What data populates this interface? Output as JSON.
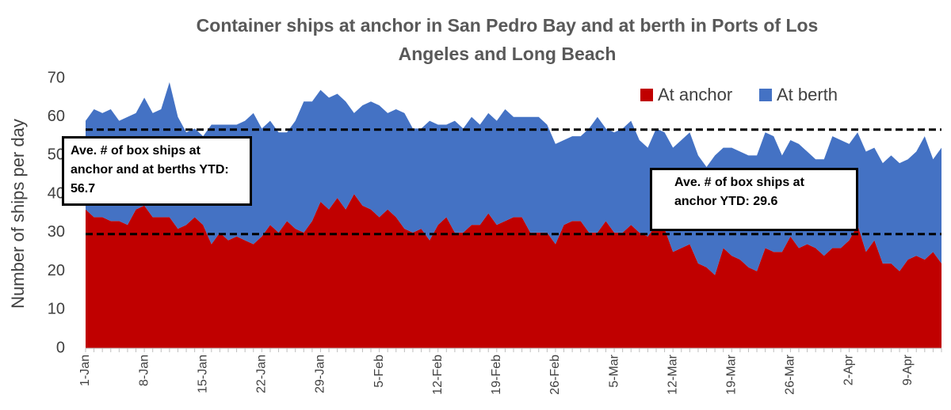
{
  "chart_data": {
    "type": "stacked-area",
    "title": "Container ships at anchor in San Pedro Bay and at berth in Ports of Los Angeles and Long Beach",
    "y_label": "Number of ships per day",
    "categories": [
      "1-Jan",
      null,
      null,
      null,
      null,
      null,
      null,
      "8-Jan",
      null,
      null,
      null,
      null,
      null,
      null,
      "15-Jan",
      null,
      null,
      null,
      null,
      null,
      null,
      "22-Jan",
      null,
      null,
      null,
      null,
      null,
      null,
      "29-Jan",
      null,
      null,
      null,
      null,
      null,
      null,
      "5-Feb",
      null,
      null,
      null,
      null,
      null,
      null,
      "12-Feb",
      null,
      null,
      null,
      null,
      null,
      null,
      "19-Feb",
      null,
      null,
      null,
      null,
      null,
      null,
      "26-Feb",
      null,
      null,
      null,
      null,
      null,
      null,
      "5-Mar",
      null,
      null,
      null,
      null,
      null,
      null,
      "12-Mar",
      null,
      null,
      null,
      null,
      null,
      null,
      "19-Mar",
      null,
      null,
      null,
      null,
      null,
      null,
      "26-Mar",
      null,
      null,
      null,
      null,
      null,
      null,
      "2-Apr",
      null,
      null,
      null,
      null,
      null,
      null,
      "9-Apr",
      null,
      null,
      null,
      null
    ],
    "series": [
      {
        "name": "At anchor",
        "color": "#c00000",
        "values": [
          36,
          34,
          34,
          33,
          33,
          32,
          36,
          37,
          34,
          34,
          34,
          31,
          32,
          34,
          32,
          27,
          30,
          28,
          29,
          28,
          27,
          29,
          32,
          30,
          33,
          31,
          30,
          33,
          38,
          36,
          39,
          36,
          40,
          37,
          36,
          34,
          36,
          34,
          31,
          30,
          31,
          28,
          32,
          34,
          30,
          30,
          32,
          32,
          35,
          32,
          33,
          34,
          34,
          30,
          30,
          30,
          27,
          32,
          33,
          33,
          30,
          30,
          33,
          30,
          30,
          32,
          30,
          29,
          32,
          31,
          25,
          26,
          27,
          22,
          21,
          19,
          26,
          24,
          23,
          21,
          20,
          26,
          25,
          25,
          29,
          26,
          27,
          26,
          24,
          26,
          26,
          28,
          32,
          25,
          28,
          22,
          22,
          20,
          23,
          24,
          23,
          25,
          22
        ]
      },
      {
        "name": "At berth",
        "color": "#4472c4",
        "values": [
          23,
          28,
          27,
          29,
          26,
          28,
          25,
          28,
          27,
          28,
          35,
          29,
          24,
          23,
          23,
          31,
          28,
          30,
          29,
          31,
          34,
          28,
          27,
          26,
          23,
          28,
          34,
          31,
          29,
          29,
          27,
          28,
          21,
          26,
          28,
          29,
          25,
          28,
          30,
          27,
          26,
          31,
          26,
          24,
          29,
          27,
          28,
          26,
          26,
          27,
          29,
          26,
          26,
          30,
          30,
          28,
          26,
          22,
          22,
          22,
          27,
          30,
          24,
          26,
          27,
          27,
          24,
          23,
          25,
          25,
          27,
          28,
          29,
          28,
          26,
          31,
          26,
          28,
          28,
          29,
          30,
          30,
          30,
          25,
          25,
          27,
          24,
          23,
          25,
          29,
          28,
          25,
          24,
          26,
          24,
          26,
          28,
          28,
          26,
          27,
          32,
          24,
          30
        ]
      }
    ],
    "reference_lines": [
      {
        "value": 56.7,
        "label": "Ave. # of box ships at anchor and at berths YTD: 56.7"
      },
      {
        "value": 29.6,
        "label": "Ave. # of box ships at anchor YTD: 29.6"
      }
    ],
    "ylim": [
      0,
      70
    ],
    "yticks": [
      0,
      10,
      20,
      30,
      40,
      50,
      60,
      70
    ],
    "legend": "top-right"
  }
}
